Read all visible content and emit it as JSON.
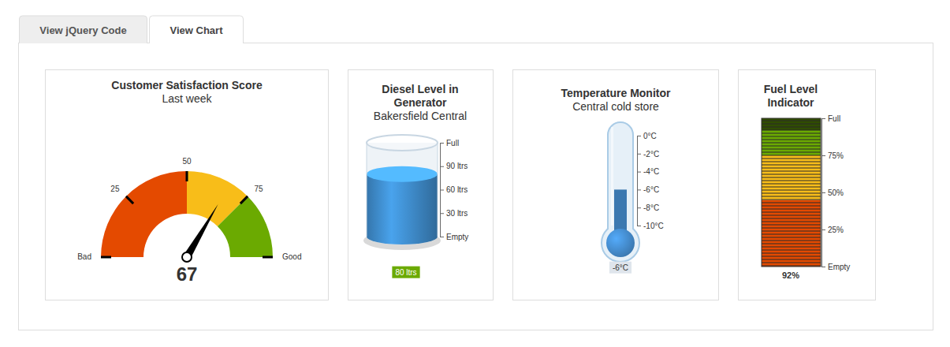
{
  "tabs": [
    {
      "label": "View jQuery Code",
      "active": false
    },
    {
      "label": "View Chart",
      "active": true
    }
  ],
  "chart_data": [
    {
      "type": "gauge",
      "title": "Customer Satisfaction Score",
      "subtitle": "Last week",
      "values": [
        67
      ],
      "data_labels": true,
      "ylim": [
        0,
        100
      ],
      "yticks": [
        {
          "value": 0,
          "label": "Bad"
        },
        25,
        50,
        75,
        {
          "value": 100,
          "label": "Good"
        }
      ],
      "bands": [
        {
          "from": 0,
          "to": 50,
          "color": "#e44a00"
        },
        {
          "from": 50,
          "to": 75,
          "color": "#f8bd19"
        },
        {
          "from": 75,
          "to": 100,
          "color": "#6baa01"
        }
      ]
    },
    {
      "type": "cylinder",
      "title": "Diesel Level in Generator",
      "subtitle": "Bakersfield Central",
      "values": [
        80
      ],
      "value_labels": [
        "80 ltrs"
      ],
      "data_labels": true,
      "color": "#3d88c6",
      "ylim": [
        0,
        120
      ],
      "yticks": [
        {
          "value": 0,
          "label": "Empty"
        },
        {
          "value": 30,
          "label": "30 ltrs"
        },
        {
          "value": 60,
          "label": "60 ltrs"
        },
        {
          "value": 90,
          "label": "90 ltrs"
        },
        {
          "value": 120,
          "label": "Full"
        }
      ]
    },
    {
      "type": "thermometer",
      "title": "Temperature Monitor",
      "subtitle": "Central cold store",
      "values": [
        -6
      ],
      "value_labels": [
        "-6°C"
      ],
      "data_labels": true,
      "color": "#3b78b0",
      "ylim": [
        -10,
        0
      ],
      "yticks": [
        {
          "value": 0,
          "label": "0°C"
        },
        {
          "value": -2,
          "label": "-2°C"
        },
        {
          "value": -4,
          "label": "-4°C"
        },
        {
          "value": -6,
          "label": "-6°C"
        },
        {
          "value": -8,
          "label": "-8°C"
        },
        {
          "value": -10,
          "label": "-10°C"
        }
      ]
    },
    {
      "type": "led",
      "title": "Fuel Level Indicator",
      "values": [
        92
      ],
      "value_labels": [
        "92%"
      ],
      "data_labels": true,
      "ylim": [
        0,
        100
      ],
      "yticks": [
        {
          "value": 0,
          "label": "Empty"
        },
        {
          "value": 25,
          "label": "25%"
        },
        {
          "value": 50,
          "label": "50%"
        },
        {
          "value": 75,
          "label": "75%"
        },
        {
          "value": 100,
          "label": "Full"
        }
      ],
      "bands": [
        {
          "from": 0,
          "to": 45,
          "color": "#e44a00"
        },
        {
          "from": 45,
          "to": 75,
          "color": "#f8bd19"
        },
        {
          "from": 75,
          "to": 100,
          "color": "#6baa01"
        }
      ]
    }
  ]
}
